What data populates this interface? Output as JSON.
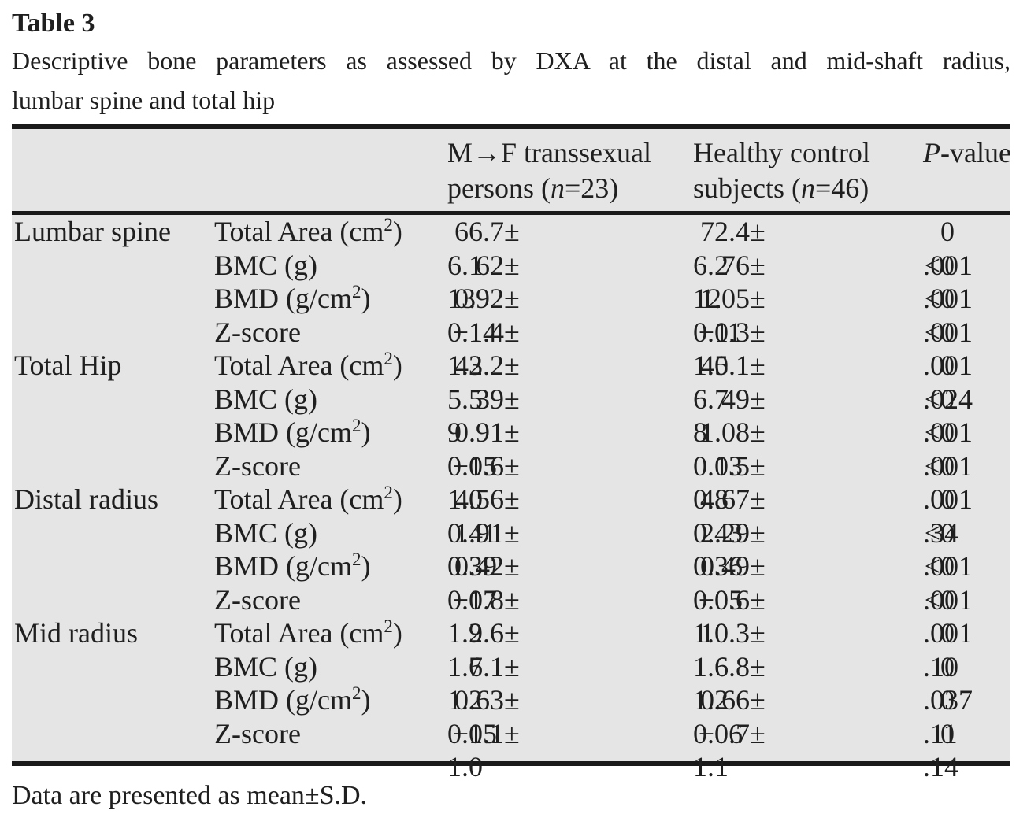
{
  "caption": {
    "label": "Table 3",
    "line1": "Descriptive bone parameters as assessed by DXA at the distal and mid-shaft radius,",
    "line2": "lumbar spine and total hip"
  },
  "table": {
    "columns": {
      "mf": {
        "line1": "M→F transsexual",
        "line2_pre": "persons (",
        "n": "n",
        "line2_post": "=23)"
      },
      "hc": {
        "line1": "Healthy control",
        "line2_pre": "subjects (",
        "n": "n",
        "line2_post": "=46)"
      },
      "p": {
        "italic": "P",
        "rest": "-value"
      }
    },
    "sections": [
      {
        "region": "Lumbar spine",
        "rows": [
          {
            "param": "Total Area (cm²)",
            "mf": "66.7±6.1",
            "hc": "72.4±6.2",
            "p": "0.001"
          },
          {
            "param": "BMC (g)",
            "mf": "62±13",
            "hc": "76±12",
            "p": "<0.001"
          },
          {
            "param": "BMD (g/cm²)",
            "mf": "0.92±0.14",
            "hc": "1.05±0.11",
            "p": "<0.001"
          },
          {
            "param": "Z-score",
            "mf": "−1.4±1.3",
            "hc": "−0.3±1.0",
            "p": "<0.001"
          }
        ]
      },
      {
        "region": "Total Hip",
        "rows": [
          {
            "param": "Total Area (cm²)",
            "mf": "42.2±5.5",
            "hc": "45.1±6.7",
            "p": "0.024"
          },
          {
            "param": "BMC (g)",
            "mf": "39±9",
            "hc": "49±8",
            "p": "<0.001"
          },
          {
            "param": "BMD (g/cm²)",
            "mf": "0.91±0.15",
            "hc": "1.08±0.13",
            "p": "<0.001"
          },
          {
            "param": "Z-score",
            "mf": "−0.6±1.0",
            "hc": "0.5±0.8",
            "p": "<0.001"
          }
        ]
      },
      {
        "region": "Distal radius",
        "rows": [
          {
            "param": "Total Area (cm²)",
            "mf": "4.56±0.41",
            "hc": "4.67±0.43",
            "p": "0.34"
          },
          {
            "param": "BMC (g)",
            "mf": "1.91±0.39",
            "hc": "2.29±0.36",
            "p": "<0.001"
          },
          {
            "param": "BMD (g/cm²)",
            "mf": "0.42±0.07",
            "hc": "0.49±0.05",
            "p": "<0.001"
          },
          {
            "param": "Z-score",
            "mf": "−1.8±1.2",
            "hc": "−0.6±1.0",
            "p": "<0.001"
          }
        ]
      },
      {
        "region": "Mid radius",
        "rows": [
          {
            "param": "Total Area (cm²)",
            "mf": "9.6±1.7",
            "hc": "10.3±1.6",
            "p": "0.10"
          },
          {
            "param": "BMC (g)",
            "mf": "6.1±1.2",
            "hc": "6.8±1.2",
            "p": "0.037"
          },
          {
            "param": "BMD (g/cm²)",
            "mf": "0.63±0.05",
            "hc": "0.66±0.06",
            "p": "0.11"
          },
          {
            "param": "Z-score",
            "mf": "−1.1±1.0",
            "hc": "−0.7±1.1",
            "p": "0.14"
          }
        ]
      }
    ]
  },
  "footnote": "Data are presented as mean±S.D.",
  "colors": {
    "table_background": "#e5e5e5",
    "rule": "#1a1a1a",
    "text": "#1f1f1f",
    "page_background": "#ffffff"
  }
}
